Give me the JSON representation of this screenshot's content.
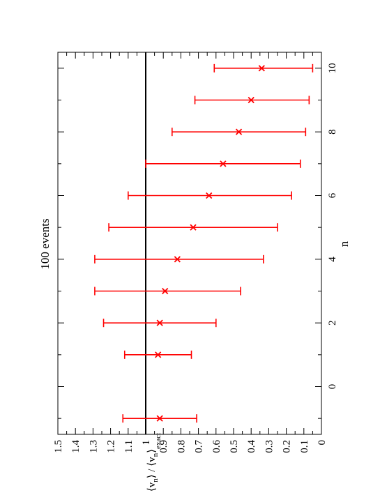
{
  "chart_data": {
    "type": "scatter",
    "orientation": "rotated-90-ccw",
    "title": "100 events",
    "xlabel": "n",
    "ylabel": "⟨v_n⟩ / ⟨v_n⟩_exact",
    "ylabel_parts": {
      "num_v": "v",
      "num_sub": "n",
      "sep": " / ",
      "den_v": "v",
      "den_sub": "n",
      "den_sup": "exact"
    },
    "xlim": [
      -1.5,
      10.5
    ],
    "ylim": [
      0,
      1.5
    ],
    "x_ticks": [
      "0",
      "2",
      "4",
      "6",
      "8",
      "10"
    ],
    "y_ticks": [
      "0",
      "0.1",
      "0.2",
      "0.3",
      "0.4",
      "0.5",
      "0.6",
      "0.7",
      "0.8",
      "0.9",
      "1",
      "1.1",
      "1.2",
      "1.3",
      "1.4",
      "1.5"
    ],
    "reference_line": 1,
    "series_color": "#ff0000",
    "points": [
      {
        "x": -1,
        "y": 0.92,
        "lo": 0.71,
        "hi": 1.13
      },
      {
        "x": 1,
        "y": 0.93,
        "lo": 0.74,
        "hi": 1.12
      },
      {
        "x": 2,
        "y": 0.92,
        "lo": 0.6,
        "hi": 1.24
      },
      {
        "x": 3,
        "y": 0.89,
        "lo": 0.46,
        "hi": 1.29
      },
      {
        "x": 4,
        "y": 0.82,
        "lo": 0.33,
        "hi": 1.29
      },
      {
        "x": 5,
        "y": 0.73,
        "lo": 0.25,
        "hi": 1.21
      },
      {
        "x": 6,
        "y": 0.64,
        "lo": 0.17,
        "hi": 1.1
      },
      {
        "x": 7,
        "y": 0.56,
        "lo": 0.12,
        "hi": 1.0
      },
      {
        "x": 8,
        "y": 0.47,
        "lo": 0.09,
        "hi": 0.85
      },
      {
        "x": 9,
        "y": 0.4,
        "lo": 0.07,
        "hi": 0.72
      },
      {
        "x": 10,
        "y": 0.34,
        "lo": 0.05,
        "hi": 0.61
      }
    ]
  }
}
